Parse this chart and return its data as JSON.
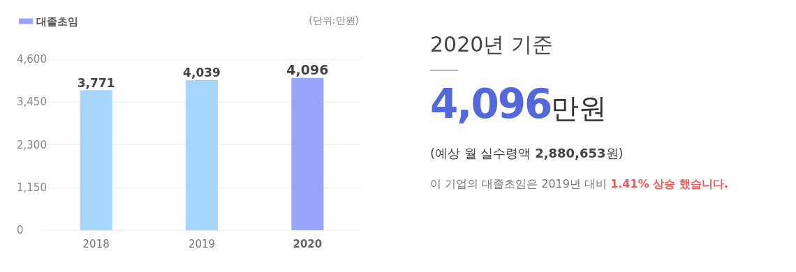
{
  "chart_data": [
    {
      "type": "bar",
      "categories": [
        "2018",
        "2019",
        "2020"
      ],
      "series": [
        {
          "name": "대졸초임",
          "colors": [
            "#a6d6fb",
            "#a6d6fb",
            "#97a5fc"
          ],
          "values": [
            3771,
            4039,
            4096
          ]
        }
      ],
      "value_labels": [
        "3,771",
        "4,039",
        "4,096"
      ],
      "ylim": [
        0,
        4600
      ],
      "yticks": [
        0,
        {
          "value": 1150,
          "label": "1,150"
        },
        {
          "value": 2300,
          "label": "2,300"
        },
        {
          "value": 3450,
          "label": "3,450"
        },
        {
          "value": 4600,
          "label": "4,600"
        }
      ],
      "grid": "y",
      "legend": "top left",
      "annotations": [
        "(단위:만원)"
      ]
    },
    {
      "type": "other",
      "title": "2020년 기준",
      "annotations": [
        "4,096",
        "만원",
        "(예상 월 실수령액 ",
        "2,880,653",
        "원)",
        "이 기업의 대졸초임은 2019년 대비 ",
        "1.41% 상승 했습니다."
      ]
    }
  ]
}
